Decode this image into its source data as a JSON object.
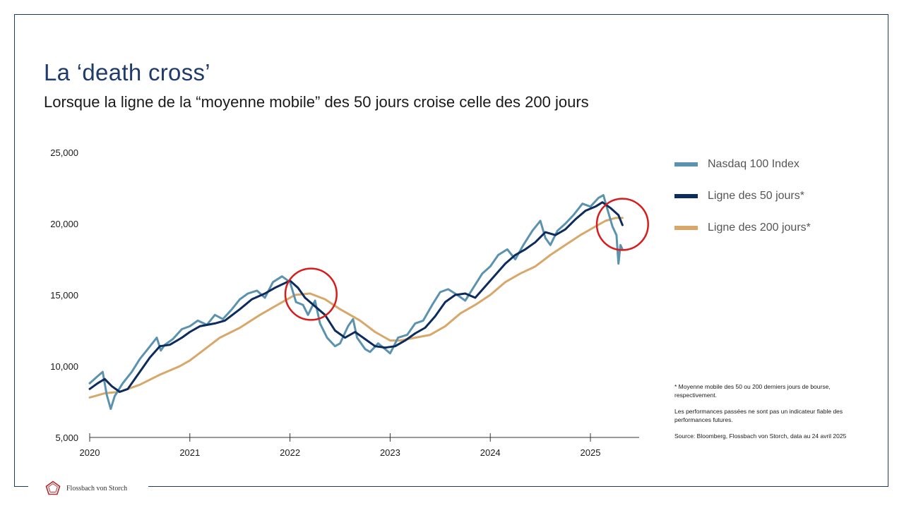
{
  "slide": {
    "title": "La ‘death cross’",
    "subtitle": "Lorsque la ligne de la “moyenne mobile” des 50 jours croise celle des 200 jours"
  },
  "legend": {
    "items": [
      {
        "label": "Nasdaq 100 Index",
        "color": "#5b93ae"
      },
      {
        "label": "Ligne des 50 jours*",
        "color": "#0d2b5c"
      },
      {
        "label": "Ligne des 200 jours*",
        "color": "#d8a86a"
      }
    ]
  },
  "notes": {
    "footnote": "* Moyenne mobile des 50 ou 200 derniers jours de bourse, respectivement.",
    "disclaimer": "Les performances passées ne sont pas un indicateur fiable des performances futures.",
    "source": "Source: Bloomberg, Flossbach von Storch, data au 24 avril 2025"
  },
  "footer": {
    "brand": "Flossbach von Storch",
    "logo_icon": "flossbach-logo-icon",
    "accent_color": "#b22a2a"
  },
  "chart_data": {
    "type": "line",
    "ylim": [
      5000,
      25000
    ],
    "yticks": [
      {
        "value": 25000,
        "label": "25,000"
      },
      {
        "value": 20000,
        "label": "20,000"
      },
      {
        "value": 15000,
        "label": "15,000"
      },
      {
        "value": 10000,
        "label": "10,000"
      },
      {
        "value": 5000,
        "label": "5,000"
      }
    ],
    "xlim": [
      2020.0,
      2025.55
    ],
    "xticks": [
      {
        "value": 2020,
        "label": "2020"
      },
      {
        "value": 2021,
        "label": "2021"
      },
      {
        "value": 2022,
        "label": "2022"
      },
      {
        "value": 2023,
        "label": "2023"
      },
      {
        "value": 2024,
        "label": "2024"
      },
      {
        "value": 2025,
        "label": "2025"
      }
    ],
    "series": [
      {
        "name": "Nasdaq 100 Index",
        "color": "#5b93ae",
        "width": 3,
        "points": [
          [
            2020.0,
            8800
          ],
          [
            2020.08,
            9300
          ],
          [
            2020.13,
            9600
          ],
          [
            2020.17,
            8000
          ],
          [
            2020.21,
            7000
          ],
          [
            2020.25,
            7900
          ],
          [
            2020.33,
            8800
          ],
          [
            2020.42,
            9600
          ],
          [
            2020.5,
            10500
          ],
          [
            2020.58,
            11200
          ],
          [
            2020.67,
            12000
          ],
          [
            2020.71,
            11100
          ],
          [
            2020.75,
            11500
          ],
          [
            2020.83,
            11900
          ],
          [
            2020.92,
            12600
          ],
          [
            2021.0,
            12800
          ],
          [
            2021.08,
            13200
          ],
          [
            2021.17,
            12900
          ],
          [
            2021.25,
            13600
          ],
          [
            2021.33,
            13300
          ],
          [
            2021.42,
            14000
          ],
          [
            2021.5,
            14700
          ],
          [
            2021.58,
            15100
          ],
          [
            2021.67,
            15300
          ],
          [
            2021.75,
            14800
          ],
          [
            2021.83,
            15900
          ],
          [
            2021.92,
            16300
          ],
          [
            2022.0,
            15900
          ],
          [
            2022.06,
            14500
          ],
          [
            2022.13,
            14300
          ],
          [
            2022.18,
            13600
          ],
          [
            2022.25,
            14600
          ],
          [
            2022.3,
            13000
          ],
          [
            2022.37,
            12000
          ],
          [
            2022.45,
            11400
          ],
          [
            2022.5,
            11600
          ],
          [
            2022.58,
            12800
          ],
          [
            2022.63,
            13300
          ],
          [
            2022.67,
            12000
          ],
          [
            2022.75,
            11200
          ],
          [
            2022.8,
            11000
          ],
          [
            2022.88,
            11600
          ],
          [
            2022.95,
            11200
          ],
          [
            2023.0,
            10900
          ],
          [
            2023.08,
            12000
          ],
          [
            2023.17,
            12200
          ],
          [
            2023.25,
            13000
          ],
          [
            2023.33,
            13200
          ],
          [
            2023.42,
            14300
          ],
          [
            2023.5,
            15200
          ],
          [
            2023.58,
            15400
          ],
          [
            2023.67,
            15000
          ],
          [
            2023.75,
            14600
          ],
          [
            2023.83,
            15500
          ],
          [
            2023.92,
            16500
          ],
          [
            2024.0,
            17000
          ],
          [
            2024.08,
            17800
          ],
          [
            2024.17,
            18200
          ],
          [
            2024.25,
            17500
          ],
          [
            2024.33,
            18500
          ],
          [
            2024.42,
            19500
          ],
          [
            2024.5,
            20200
          ],
          [
            2024.55,
            19000
          ],
          [
            2024.6,
            18500
          ],
          [
            2024.67,
            19500
          ],
          [
            2024.75,
            20000
          ],
          [
            2024.83,
            20600
          ],
          [
            2024.92,
            21400
          ],
          [
            2025.0,
            21200
          ],
          [
            2025.08,
            21800
          ],
          [
            2025.13,
            22000
          ],
          [
            2025.17,
            21000
          ],
          [
            2025.22,
            19800
          ],
          [
            2025.26,
            19200
          ],
          [
            2025.28,
            17200
          ],
          [
            2025.3,
            18500
          ],
          [
            2025.32,
            18200
          ]
        ]
      },
      {
        "name": "Ligne des 50 jours*",
        "color": "#0d2b5c",
        "width": 3,
        "points": [
          [
            2020.0,
            8400
          ],
          [
            2020.08,
            8800
          ],
          [
            2020.15,
            9100
          ],
          [
            2020.22,
            8600
          ],
          [
            2020.3,
            8200
          ],
          [
            2020.38,
            8400
          ],
          [
            2020.5,
            9600
          ],
          [
            2020.6,
            10600
          ],
          [
            2020.7,
            11400
          ],
          [
            2020.8,
            11500
          ],
          [
            2020.92,
            12000
          ],
          [
            2021.0,
            12400
          ],
          [
            2021.1,
            12800
          ],
          [
            2021.25,
            13000
          ],
          [
            2021.35,
            13200
          ],
          [
            2021.5,
            14000
          ],
          [
            2021.62,
            14700
          ],
          [
            2021.75,
            15100
          ],
          [
            2021.85,
            15500
          ],
          [
            2022.0,
            16000
          ],
          [
            2022.08,
            15500
          ],
          [
            2022.15,
            14800
          ],
          [
            2022.25,
            14200
          ],
          [
            2022.35,
            13600
          ],
          [
            2022.45,
            12500
          ],
          [
            2022.55,
            12000
          ],
          [
            2022.65,
            12400
          ],
          [
            2022.75,
            11900
          ],
          [
            2022.85,
            11400
          ],
          [
            2022.95,
            11300
          ],
          [
            2023.05,
            11400
          ],
          [
            2023.15,
            11800
          ],
          [
            2023.25,
            12300
          ],
          [
            2023.35,
            12700
          ],
          [
            2023.45,
            13500
          ],
          [
            2023.55,
            14500
          ],
          [
            2023.65,
            15000
          ],
          [
            2023.75,
            15100
          ],
          [
            2023.85,
            14800
          ],
          [
            2023.95,
            15600
          ],
          [
            2024.05,
            16400
          ],
          [
            2024.15,
            17200
          ],
          [
            2024.25,
            17800
          ],
          [
            2024.35,
            18200
          ],
          [
            2024.45,
            18700
          ],
          [
            2024.55,
            19400
          ],
          [
            2024.65,
            19200
          ],
          [
            2024.75,
            19600
          ],
          [
            2024.85,
            20300
          ],
          [
            2024.95,
            20900
          ],
          [
            2025.05,
            21200
          ],
          [
            2025.12,
            21500
          ],
          [
            2025.2,
            21100
          ],
          [
            2025.28,
            20600
          ],
          [
            2025.32,
            19900
          ]
        ]
      },
      {
        "name": "Ligne des 200 jours*",
        "color": "#d8a86a",
        "width": 3,
        "points": [
          [
            2020.0,
            7800
          ],
          [
            2020.15,
            8100
          ],
          [
            2020.3,
            8200
          ],
          [
            2020.5,
            8700
          ],
          [
            2020.7,
            9400
          ],
          [
            2020.9,
            10000
          ],
          [
            2021.0,
            10400
          ],
          [
            2021.15,
            11200
          ],
          [
            2021.3,
            12000
          ],
          [
            2021.5,
            12700
          ],
          [
            2021.7,
            13600
          ],
          [
            2021.9,
            14400
          ],
          [
            2022.05,
            15000
          ],
          [
            2022.2,
            15100
          ],
          [
            2022.35,
            14700
          ],
          [
            2022.5,
            14000
          ],
          [
            2022.7,
            13200
          ],
          [
            2022.85,
            12400
          ],
          [
            2023.0,
            11800
          ],
          [
            2023.1,
            11800
          ],
          [
            2023.25,
            12000
          ],
          [
            2023.4,
            12200
          ],
          [
            2023.55,
            12800
          ],
          [
            2023.7,
            13700
          ],
          [
            2023.85,
            14300
          ],
          [
            2024.0,
            15000
          ],
          [
            2024.15,
            15900
          ],
          [
            2024.3,
            16500
          ],
          [
            2024.45,
            17000
          ],
          [
            2024.6,
            17800
          ],
          [
            2024.75,
            18500
          ],
          [
            2024.9,
            19200
          ],
          [
            2025.05,
            19800
          ],
          [
            2025.15,
            20200
          ],
          [
            2025.25,
            20400
          ],
          [
            2025.32,
            20400
          ]
        ]
      }
    ],
    "highlights": [
      {
        "label": "death-cross-2022",
        "x": 2022.21,
        "y": 15050,
        "radius_pct_of_ytick": 0.36,
        "color": "#d81c1c"
      },
      {
        "label": "death-cross-2025",
        "x": 2025.32,
        "y": 19950,
        "radius_pct_of_ytick": 0.36,
        "color": "#d81c1c"
      }
    ]
  }
}
